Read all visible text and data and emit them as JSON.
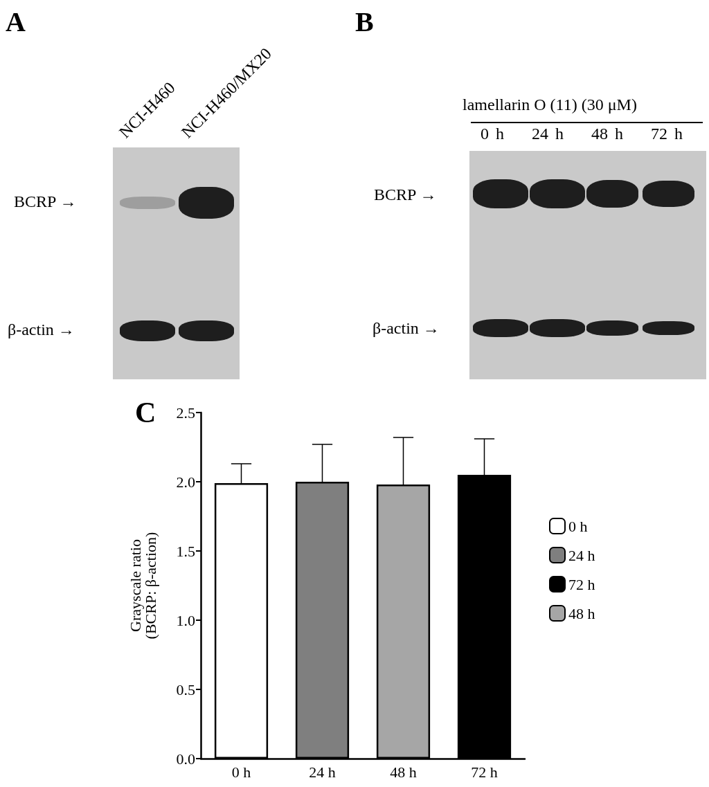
{
  "chart_data": [
    {
      "type": "other",
      "title": "A",
      "annotations": [
        "NCI-H460",
        "NCI-H460/MX20",
        "BCRP →",
        "β-actin →"
      ]
    },
    {
      "type": "other",
      "title": "B",
      "annotations": [
        "lamellarin O (11) (30 μM)",
        "0 h    24 h    48 h    72 h",
        "BCRP →",
        "β-actin →"
      ]
    },
    {
      "type": "bar",
      "title": "C",
      "ylabel": "Grayscale ratio\n(BCRP: β-action)",
      "categories": [
        "0 h",
        "24 h",
        "48 h",
        "72 h"
      ],
      "stacked": true,
      "legend": "right",
      "grid": false,
      "ylim": [
        0,
        2.5
      ],
      "yticks": [
        {
          "value": 0,
          "label": "0.0"
        },
        {
          "value": 0.5,
          "label": "0.5"
        },
        {
          "value": 1,
          "label": "1.0"
        },
        {
          "value": 1.5,
          "label": "1.5"
        },
        {
          "value": 2,
          "label": "2.0"
        },
        {
          "value": 2.5,
          "label": "2.5"
        }
      ],
      "series": [
        {
          "name": "0 h",
          "color": "#ffffff",
          "values": [
            1.99,
            null,
            null,
            null
          ],
          "errors": [
            [
              1.99,
              2.13
            ],
            null,
            null,
            null
          ]
        },
        {
          "name": "24 h",
          "color": "#7f7f7f",
          "values": [
            null,
            2.0,
            null,
            null
          ],
          "errors": [
            null,
            [
              2.0,
              2.27
            ],
            null,
            null
          ]
        },
        {
          "name": "72 h",
          "color": "#000000",
          "values": [
            null,
            null,
            null,
            2.05
          ],
          "errors": [
            null,
            null,
            null,
            [
              2.05,
              2.31
            ]
          ]
        },
        {
          "name": "48 h",
          "color": "#a6a6a6",
          "values": [
            null,
            null,
            1.98,
            null
          ],
          "errors": [
            null,
            null,
            [
              1.98,
              2.32
            ],
            null
          ]
        }
      ]
    }
  ]
}
